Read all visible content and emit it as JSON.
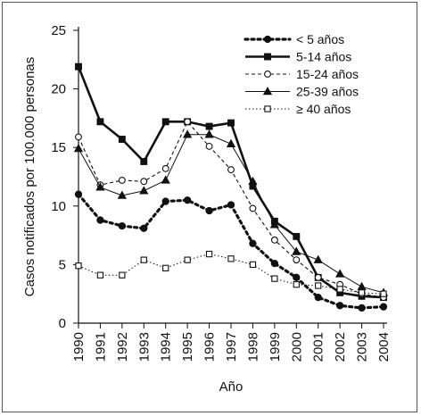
{
  "chart_data": {
    "type": "line",
    "xlabel": "Año",
    "ylabel": "Casos notificados por 100.000 personas",
    "x": [
      1990,
      1991,
      1992,
      1993,
      1994,
      1995,
      1996,
      1997,
      1998,
      1999,
      2000,
      2001,
      2002,
      2003,
      2004
    ],
    "x_tick_labels": [
      "1990",
      "1991",
      "1992",
      "1993",
      "1994",
      "1995",
      "1996",
      "1997",
      "1998",
      "1999",
      "2000",
      "2001",
      "2002",
      "2003",
      "2004"
    ],
    "ylim": [
      0,
      25
    ],
    "y_ticks": [
      0,
      5,
      10,
      15,
      20,
      25
    ],
    "y_tick_labels": [
      "0",
      "5",
      "10",
      "15",
      "20",
      "25"
    ],
    "grid": false,
    "legend_position": "top-right",
    "series": [
      {
        "name": "< 5 años",
        "marker": "filled-circle",
        "line": "heavy-dotted",
        "color": "#111111",
        "values": [
          11.0,
          8.8,
          8.3,
          8.1,
          10.4,
          10.5,
          9.6,
          10.1,
          6.8,
          5.1,
          3.9,
          2.2,
          1.5,
          1.3,
          1.4
        ]
      },
      {
        "name": "5-14 años",
        "marker": "filled-square",
        "line": "thick-solid",
        "color": "#111111",
        "values": [
          21.9,
          17.2,
          15.7,
          13.8,
          17.2,
          17.2,
          16.8,
          17.1,
          11.7,
          8.7,
          7.4,
          3.9,
          2.6,
          2.3,
          2.2
        ]
      },
      {
        "name": "15-24 años",
        "marker": "open-circle",
        "line": "dashed",
        "color": "#111111",
        "values": [
          15.9,
          11.8,
          12.2,
          12.1,
          13.2,
          17.2,
          15.1,
          13.1,
          9.8,
          7.1,
          5.4,
          3.9,
          3.3,
          2.5,
          2.2
        ]
      },
      {
        "name": "25-39 años",
        "marker": "filled-triangle",
        "line": "thin-solid",
        "color": "#111111",
        "values": [
          14.9,
          11.6,
          10.9,
          11.3,
          12.2,
          16.1,
          16.1,
          15.3,
          12.1,
          8.4,
          6.1,
          5.4,
          4.2,
          3.1,
          2.6
        ]
      },
      {
        "name": "≥ 40 años",
        "marker": "open-square",
        "line": "fine-dotted",
        "color": "#111111",
        "values": [
          4.9,
          4.1,
          4.1,
          5.4,
          4.7,
          5.4,
          5.9,
          5.5,
          5.0,
          3.8,
          3.3,
          3.2,
          2.9,
          2.6,
          2.5
        ]
      }
    ]
  }
}
